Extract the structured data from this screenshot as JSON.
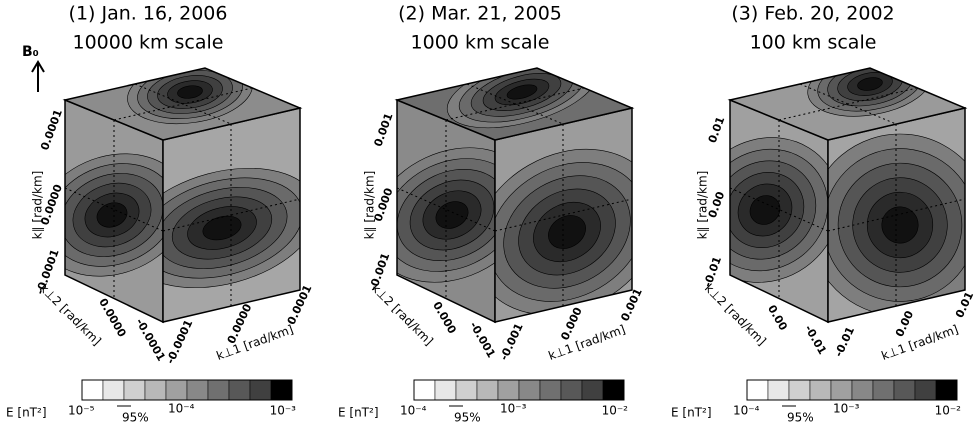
{
  "b0": "B₀",
  "panels": [
    {
      "title": "(1) Jan. 16, 2006",
      "scale": "10000 km scale",
      "k_par": {
        "label": "k∥ [rad/km]",
        "ticks": [
          "0.0001",
          "0.0000",
          "-0.0001"
        ]
      },
      "k_perp2": {
        "label": "k⊥2 [rad/km]",
        "ticks": [
          "0.0000",
          "-0.0001"
        ]
      },
      "k_perp1": {
        "label": "k⊥1 [rad/km]",
        "ticks": [
          "-0.0001",
          "0.0000",
          "0.0001"
        ]
      },
      "colorbar": {
        "label": "E [nT²]",
        "min": "10⁻⁵",
        "ci": "95%",
        "mid": "10⁻⁴",
        "max": "10⁻³"
      }
    },
    {
      "title": "(2) Mar. 21, 2005",
      "scale": "1000 km scale",
      "k_par": {
        "label": "k∥ [rad/km]",
        "ticks": [
          "0.001",
          "0.000",
          "-0.001"
        ]
      },
      "k_perp2": {
        "label": "k⊥2 [rad/km]",
        "ticks": [
          "0.000",
          "-0.001"
        ]
      },
      "k_perp1": {
        "label": "k⊥1 [rad/km]",
        "ticks": [
          "-0.001",
          "0.000",
          "0.001"
        ]
      },
      "colorbar": {
        "label": "E [nT²]",
        "min": "10⁻⁴",
        "ci": "95%",
        "mid": "10⁻³",
        "max": "10⁻²"
      }
    },
    {
      "title": "(3) Feb. 20, 2002",
      "scale": "100 km scale",
      "k_par": {
        "label": "k∥ [rad/km]",
        "ticks": [
          "0.01",
          "0.00",
          "-0.01"
        ]
      },
      "k_perp2": {
        "label": "k⊥2 [rad/km]",
        "ticks": [
          "0.00",
          "-0.01"
        ]
      },
      "k_perp1": {
        "label": "k⊥1 [rad/km]",
        "ticks": [
          "-0.01",
          "0.00",
          "0.01"
        ]
      },
      "colorbar": {
        "label": "E [nT²]",
        "min": "10⁻⁴",
        "ci": "95%",
        "mid": "10⁻³",
        "max": "10⁻²"
      }
    }
  ]
}
